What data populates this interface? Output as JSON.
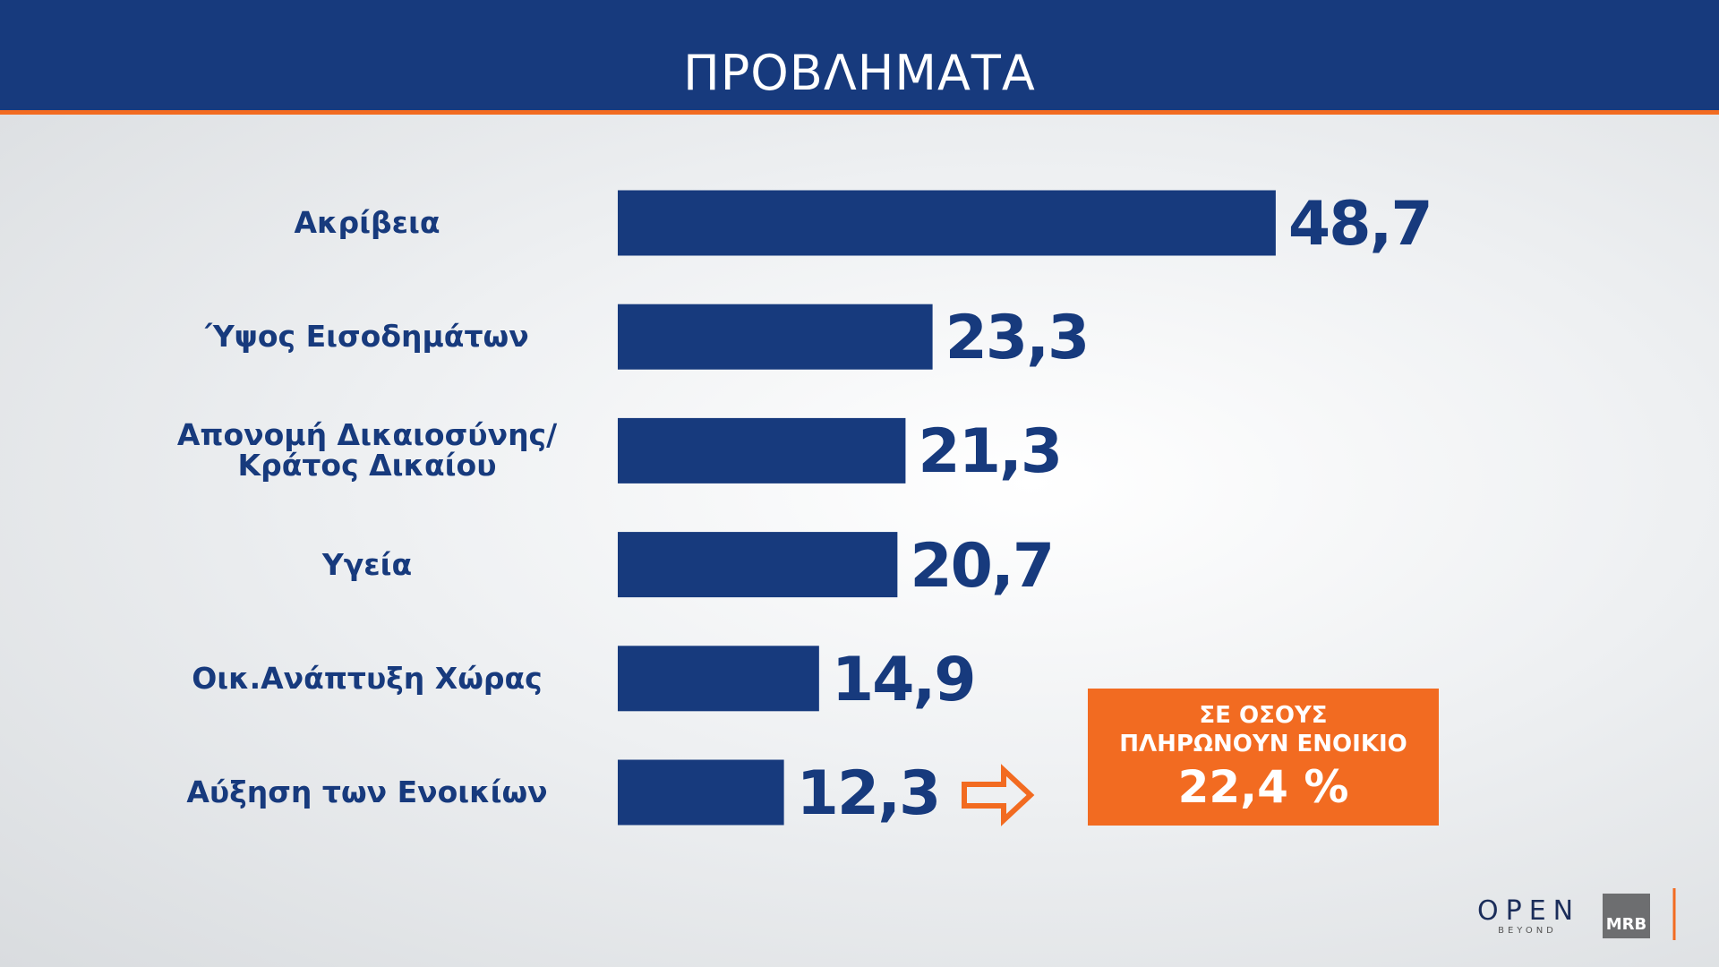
{
  "chart_data": {
    "type": "bar",
    "orientation": "horizontal",
    "title": "ΠΡΟΒΛΗΜΑΤΑ",
    "categories": [
      "Ακρίβεια",
      "Ύψος Εισοδημάτων",
      "Απονομή Δικαιοσύνης/\nΚράτος Δικαίου",
      "Υγεία",
      "Οικ.Ανάπτυξη Χώρας",
      "Αύξηση των Ενοικίων"
    ],
    "values": [
      48.7,
      23.3,
      21.3,
      20.7,
      14.9,
      12.3
    ],
    "value_labels": [
      "48,7",
      "23,3",
      "21,3",
      "20,7",
      "14,9",
      "12,3"
    ],
    "color": "#173a7d",
    "annotation": {
      "lines": [
        "ΣΕ ΟΣΟΥΣ",
        "ΠΛΗΡΩΝΟΥΝ ΕΝΟΙΚΙΟ"
      ],
      "label": "22,4 %",
      "color": "#f26b21"
    }
  },
  "logos": {
    "channel": "OPEN",
    "tagline": "BEYOND",
    "pollster": "MRB"
  }
}
